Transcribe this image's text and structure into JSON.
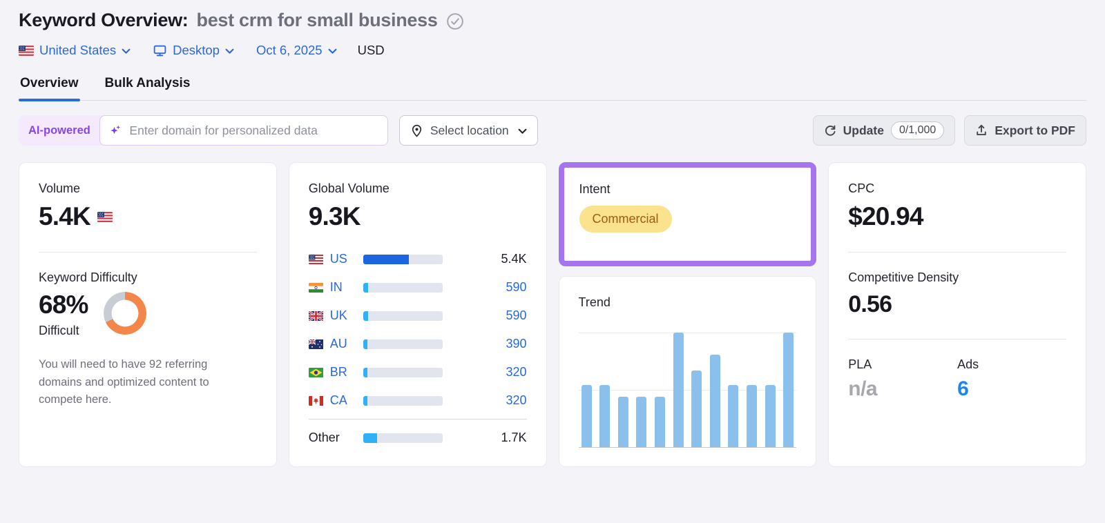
{
  "colors": {
    "accent_blue": "#2a67e2",
    "highlight_purple": "#a674ec",
    "kd_orange": "#f28749",
    "donut_track": "#c8ccd5",
    "trend_bar": "#8cc0ec",
    "us_bar_fill": "#1b66df",
    "country_bar_fill": "#2fb2f5",
    "ads_blue": "#1d85ef",
    "intent_badge_bg": "#fbe28c",
    "intent_badge_text": "#a05c10"
  },
  "header": {
    "title_label": "Keyword Overview:",
    "keyword": "best crm for small business",
    "filters": {
      "country": "United States",
      "device": "Desktop",
      "date": "Oct 6, 2025",
      "currency": "USD"
    }
  },
  "tabs": [
    {
      "label": "Overview",
      "active": true
    },
    {
      "label": "Bulk Analysis",
      "active": false
    }
  ],
  "toolbar": {
    "ai_badge": "AI-powered",
    "domain_placeholder": "Enter domain for personalized data",
    "location_button": "Select location",
    "update_label": "Update",
    "update_quota": "0/1,000",
    "export_label": "Export to PDF"
  },
  "cards": {
    "volume": {
      "label": "Volume",
      "value": "5.4K",
      "flag": "US"
    },
    "difficulty": {
      "label": "Keyword Difficulty",
      "value": "68%",
      "percent": 68,
      "rating": "Difficult",
      "description": "You will need to have 92 referring domains and optimized content to compete here."
    },
    "global_volume": {
      "label": "Global Volume",
      "value": "9.3K",
      "rows": [
        {
          "code": "US",
          "flag": "US",
          "value": "5.4K",
          "bar_pct": 58,
          "value_style": "dark",
          "us": true
        },
        {
          "code": "IN",
          "flag": "IN",
          "value": "590",
          "bar_pct": 6,
          "value_style": "blue"
        },
        {
          "code": "UK",
          "flag": "UK",
          "value": "590",
          "bar_pct": 6,
          "value_style": "blue"
        },
        {
          "code": "AU",
          "flag": "AU",
          "value": "390",
          "bar_pct": 5,
          "value_style": "blue"
        },
        {
          "code": "BR",
          "flag": "BR",
          "value": "320",
          "bar_pct": 5,
          "value_style": "blue"
        },
        {
          "code": "CA",
          "flag": "CA",
          "value": "320",
          "bar_pct": 5,
          "value_style": "blue"
        },
        {
          "code": "Other",
          "flag": null,
          "value": "1.7K",
          "bar_pct": 18,
          "value_style": "dark",
          "divider_above": true
        }
      ]
    },
    "intent": {
      "label": "Intent",
      "badge": "Commercial"
    },
    "trend": {
      "label": "Trend",
      "bars": [
        54,
        54,
        44,
        44,
        44,
        100,
        67,
        81,
        54,
        54,
        54,
        100
      ]
    },
    "cpc": {
      "label": "CPC",
      "value": "$20.94"
    },
    "competitive_density": {
      "label": "Competitive Density",
      "value": "0.56"
    },
    "pla": {
      "label": "PLA",
      "value": "n/a"
    },
    "ads": {
      "label": "Ads",
      "value": "6"
    }
  }
}
